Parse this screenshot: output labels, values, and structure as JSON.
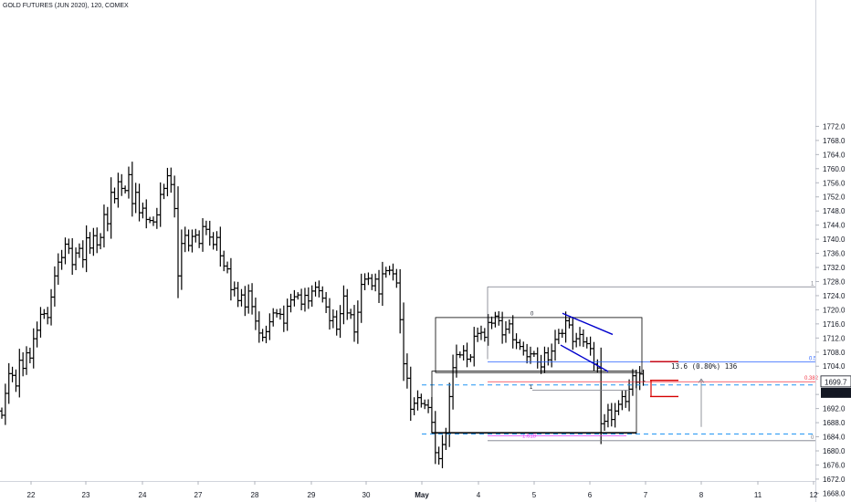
{
  "chart_data": {
    "type": "ohlc",
    "title": "GOLD FUTURES (JUN 2020), 120, COMEX",
    "x_tick_labels": [
      "22",
      "23",
      "24",
      "27",
      "28",
      "29",
      "30",
      "May",
      "4",
      "5",
      "6",
      "7",
      "8",
      "11",
      "12"
    ],
    "y_tick_labels": [
      "1668.0",
      "1672.0",
      "1676.0",
      "1680.0",
      "1684.0",
      "1688.0",
      "1692.0",
      "1696.0",
      "1704.0",
      "1708.0",
      "1712.0",
      "1716.0",
      "1720.0",
      "1724.0",
      "1728.0",
      "1732.0",
      "1736.0",
      "1740.0",
      "1744.0",
      "1748.0",
      "1752.0",
      "1756.0",
      "1760.0",
      "1764.0",
      "1768.0",
      "1772.0"
    ],
    "ylim": [
      1666,
      1774
    ],
    "last_price_label": "1699.7",
    "countdown_label": "57:55",
    "close_series": [
      1690.1,
      1696.3,
      1701.9,
      1701.4,
      1698.4,
      1705.7,
      1703.4,
      1707.8,
      1706.3,
      1711.8,
      1714.2,
      1718.7,
      1718.9,
      1717.8,
      1723.6,
      1729.6,
      1733.5,
      1734.8,
      1738.6,
      1737.4,
      1732.8,
      1736.1,
      1737.4,
      1734.2,
      1740.4,
      1737.5,
      1741.0,
      1738.4,
      1740.5,
      1747.0,
      1744.4,
      1753.3,
      1751.5,
      1756.3,
      1754.4,
      1753.8,
      1758.3,
      1750.1,
      1753.3,
      1747.5,
      1748.8,
      1745.6,
      1745.3,
      1744.9,
      1746.9,
      1752.7,
      1754.4,
      1758.0,
      1755.5,
      1748.7,
      1729.6,
      1738.8,
      1741.1,
      1738.2,
      1740.8,
      1741.2,
      1738.8,
      1743.6,
      1742.8,
      1740.6,
      1738.5,
      1740.5,
      1735.3,
      1732.4,
      1731.6,
      1725.7,
      1726.1,
      1722.6,
      1724.2,
      1720.8,
      1725.3,
      1720.9,
      1716.8,
      1713.4,
      1712.2,
      1713.8,
      1716.6,
      1719.1,
      1718.9,
      1718.7,
      1716.2,
      1721.0,
      1722.8,
      1723.7,
      1724.2,
      1721.6,
      1724.1,
      1722.5,
      1725.3,
      1726.4,
      1725.4,
      1723.3,
      1720.8,
      1716.9,
      1718.0,
      1714.5,
      1718.9,
      1723.9,
      1719.1,
      1718.6,
      1713.7,
      1719.3,
      1727.2,
      1728.7,
      1728.9,
      1726.8,
      1728.7,
      1724.5,
      1730.2,
      1731.1,
      1731.2,
      1730.2,
      1727.6,
      1717.2,
      1704.7,
      1700.6,
      1691.8,
      1693.5,
      1695.1,
      1693.4,
      1693.0,
      1692.3,
      1688.1,
      1679.5,
      1677.8,
      1681.8,
      1685.0,
      1695.4,
      1703.6,
      1707.3,
      1707.2,
      1708.4,
      1706.0,
      1706.6,
      1712.5,
      1713.3,
      1713.6,
      1712.2,
      1716.4,
      1716.2,
      1718.2,
      1716.9,
      1712.9,
      1714.5,
      1716.0,
      1711.5,
      1710.7,
      1709.6,
      1708.4,
      1706.7,
      1707.5,
      1707.5,
      1705.2,
      1703.8,
      1707.8,
      1705.8,
      1708.3,
      1711.6,
      1713.3,
      1713.3,
      1716.9,
      1715.7,
      1711.0,
      1711.8,
      1713.0,
      1710.9,
      1710.4,
      1709.0,
      1704.6,
      1703.5,
      1687.7,
      1688.4,
      1691.6,
      1688.9,
      1691.3,
      1693.2,
      1695.4,
      1694.0,
      1697.5,
      1701.3,
      1699.5,
      1701.8,
      1699.7
    ],
    "annotations": {
      "fib_levels": [
        "1",
        "0.5",
        "0.382",
        "0",
        "1.618"
      ],
      "box_labels": [
        "0",
        "1"
      ],
      "measure_text": "13.6 (0.80%) 136"
    },
    "colors": {
      "bars": "#000000",
      "fib": "#787b86",
      "fib_half": "#2962ff",
      "fib_382": "#f23645",
      "fib_1618": "#e040fb",
      "dashed": "#2196f3",
      "channel": "#0000cc",
      "last_price_bg": "#131722",
      "red_marks": "#d50000"
    }
  }
}
